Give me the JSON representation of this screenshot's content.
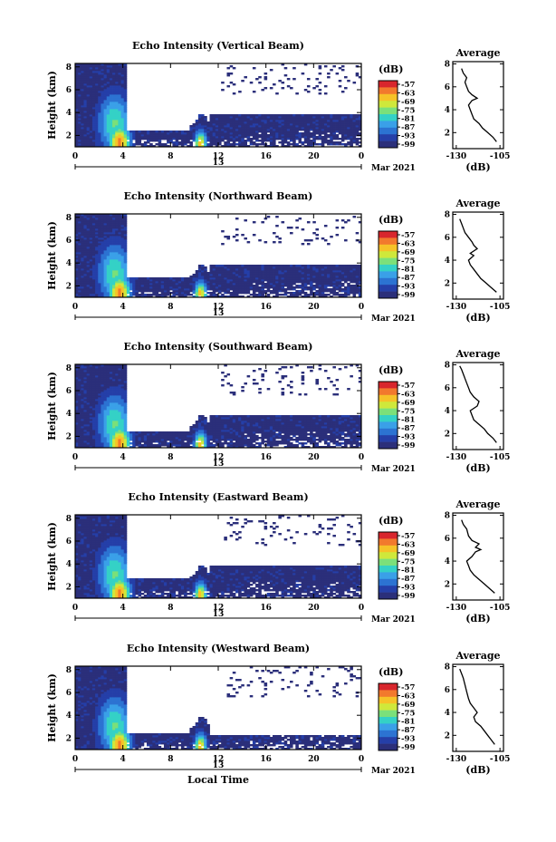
{
  "chart_data": [
    {
      "type": "heatmap",
      "title": "Echo Intensity (Vertical Beam)",
      "ylabel": "Height (km)",
      "xlabel": "",
      "x_ticks": [
        "0",
        "4",
        "8",
        "12",
        "16",
        "20",
        "0"
      ],
      "date_label": "13",
      "month_label": "Mar 2021",
      "y_ticks": [
        "2",
        "4",
        "6",
        "8"
      ],
      "colorbar": {
        "unit": "(dB)",
        "levels": [
          "-57",
          "-63",
          "-69",
          "-75",
          "-81",
          "-87",
          "-93",
          "-99"
        ]
      },
      "profile": {
        "title": "Average",
        "xlabel": "(dB)",
        "x_ticks": [
          "-130",
          "-105"
        ],
        "y_ticks": [
          "2",
          "4",
          "6",
          "8"
        ],
        "x": [
          -107,
          -109,
          -112,
          -115,
          -117,
          -120,
          -121,
          -122,
          -123,
          -121,
          -118,
          -121,
          -123,
          -124,
          -125,
          -124,
          -126,
          -127
        ],
        "y": [
          1.2,
          1.6,
          2.0,
          2.4,
          2.8,
          3.2,
          3.6,
          4.0,
          4.4,
          4.8,
          5.0,
          5.3,
          5.6,
          6.0,
          6.4,
          6.8,
          7.2,
          7.6
        ]
      }
    },
    {
      "type": "heatmap",
      "title": "Echo Intensity (Northward Beam)",
      "ylabel": "Height (km)",
      "xlabel": "",
      "x_ticks": [
        "0",
        "4",
        "8",
        "12",
        "16",
        "20",
        "0"
      ],
      "date_label": "13",
      "month_label": "Mar 2021",
      "y_ticks": [
        "2",
        "4",
        "6",
        "8"
      ],
      "colorbar": {
        "unit": "(dB)",
        "levels": [
          "-57",
          "-63",
          "-69",
          "-75",
          "-81",
          "-87",
          "-93",
          "-99"
        ]
      },
      "profile": {
        "title": "Average",
        "xlabel": "(dB)",
        "x_ticks": [
          "-130",
          "-105"
        ],
        "y_ticks": [
          "2",
          "4",
          "6",
          "8"
        ],
        "x": [
          -107,
          -110,
          -113,
          -116,
          -118,
          -120,
          -122,
          -123,
          -120,
          -122,
          -118,
          -120,
          -121,
          -123,
          -125,
          -126,
          -127,
          -128
        ],
        "y": [
          1.2,
          1.6,
          2.0,
          2.4,
          2.8,
          3.2,
          3.6,
          4.0,
          4.4,
          4.6,
          5.0,
          5.3,
          5.6,
          6.0,
          6.4,
          6.8,
          7.2,
          7.6
        ]
      }
    },
    {
      "type": "heatmap",
      "title": "Echo Intensity (Southward Beam)",
      "ylabel": "Height (km)",
      "xlabel": "",
      "x_ticks": [
        "0",
        "4",
        "8",
        "12",
        "16",
        "20",
        "0"
      ],
      "date_label": "13",
      "month_label": "Mar 2021",
      "y_ticks": [
        "2",
        "4",
        "6",
        "8"
      ],
      "colorbar": {
        "unit": "(dB)",
        "levels": [
          "-57",
          "-63",
          "-69",
          "-75",
          "-81",
          "-87",
          "-93",
          "-99"
        ]
      },
      "profile": {
        "title": "Average",
        "xlabel": "(dB)",
        "x_ticks": [
          "-130",
          "-105"
        ],
        "y_ticks": [
          "2",
          "4",
          "6",
          "8"
        ],
        "x": [
          -107,
          -109,
          -112,
          -114,
          -117,
          -120,
          -121,
          -122,
          -118,
          -117,
          -120,
          -122,
          -123,
          -124,
          -125,
          -126,
          -127,
          -128
        ],
        "y": [
          1.2,
          1.6,
          2.0,
          2.4,
          2.8,
          3.2,
          3.6,
          4.0,
          4.4,
          4.8,
          5.2,
          5.6,
          6.0,
          6.4,
          6.8,
          7.2,
          7.6,
          7.9
        ]
      }
    },
    {
      "type": "heatmap",
      "title": "Echo Intensity (Eastward Beam)",
      "ylabel": "Height (km)",
      "xlabel": "",
      "x_ticks": [
        "0",
        "4",
        "8",
        "12",
        "16",
        "20",
        "0"
      ],
      "date_label": "13",
      "month_label": "Mar 2021",
      "y_ticks": [
        "2",
        "4",
        "6",
        "8"
      ],
      "colorbar": {
        "unit": "(dB)",
        "levels": [
          "-57",
          "-63",
          "-69",
          "-75",
          "-81",
          "-87",
          "-93",
          "-99"
        ]
      },
      "profile": {
        "title": "Average",
        "xlabel": "(dB)",
        "x_ticks": [
          "-130",
          "-105"
        ],
        "y_ticks": [
          "2",
          "4",
          "6",
          "8"
        ],
        "x": [
          -108,
          -111,
          -114,
          -117,
          -120,
          -122,
          -123,
          -124,
          -121,
          -119,
          -116,
          -119,
          -117,
          -121,
          -123,
          -124,
          -126,
          -127
        ],
        "y": [
          1.2,
          1.6,
          2.0,
          2.4,
          2.8,
          3.2,
          3.6,
          4.0,
          4.4,
          4.8,
          5.0,
          5.2,
          5.5,
          5.8,
          6.2,
          6.8,
          7.2,
          7.6
        ]
      }
    },
    {
      "type": "heatmap",
      "title": "Echo Intensity (Westward Beam)",
      "ylabel": "Height (km)",
      "xlabel": "Local Time",
      "x_ticks": [
        "0",
        "4",
        "8",
        "12",
        "16",
        "20",
        "0"
      ],
      "date_label": "13",
      "month_label": "Mar 2021",
      "y_ticks": [
        "2",
        "4",
        "6",
        "8"
      ],
      "colorbar": {
        "unit": "(dB)",
        "levels": [
          "-57",
          "-63",
          "-69",
          "-75",
          "-81",
          "-87",
          "-93",
          "-99"
        ]
      },
      "profile": {
        "title": "Average",
        "xlabel": "(dB)",
        "x_ticks": [
          "-130",
          "-105"
        ],
        "y_ticks": [
          "2",
          "4",
          "6",
          "8"
        ],
        "x": [
          -108,
          -110,
          -112,
          -114,
          -116,
          -119,
          -120,
          -118,
          -120,
          -122,
          -123,
          -124,
          -125,
          -126,
          -127,
          -128
        ],
        "y": [
          1.2,
          1.6,
          2.0,
          2.4,
          2.8,
          3.2,
          3.6,
          4.0,
          4.4,
          4.8,
          5.2,
          5.8,
          6.4,
          7.0,
          7.4,
          7.8
        ]
      }
    }
  ]
}
